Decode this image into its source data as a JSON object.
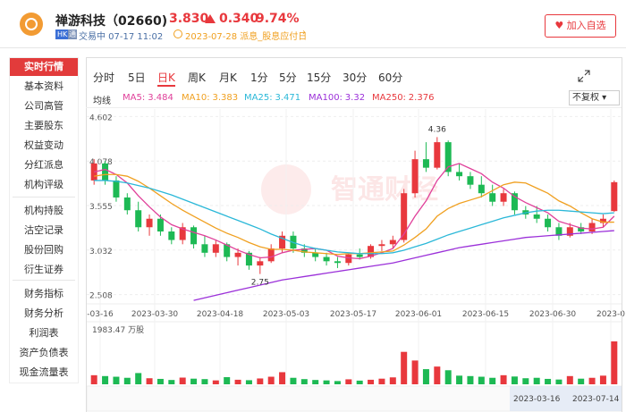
{
  "header": {
    "name": "禅游科技（02660)",
    "price": "3.830",
    "change": "0.340",
    "change_pct": "9.74%",
    "market": "HK",
    "connect": "通",
    "status": "交易中 07-17 11:02",
    "event": "2023-07-28 派息_股息应付日",
    "watch_button": "加入自选"
  },
  "nav": {
    "items": [
      "实时行情",
      "基本资料",
      "公司高管",
      "主要股东",
      "权益变动",
      "分红派息",
      "机构评级",
      "机构持股",
      "沽空记录",
      "股份回购",
      "衍生证券",
      "财务指标",
      "财务分析",
      "利润表",
      "资产负债表",
      "现金流量表"
    ]
  },
  "tabs": [
    "分时",
    "5日",
    "日K",
    "周K",
    "月K",
    "1分",
    "5分",
    "15分",
    "30分",
    "60分"
  ],
  "ma_title": "均线",
  "adjust": "不复权",
  "watermark": "智通财经",
  "chart_data": {
    "type": "candlestick",
    "ylim": [
      2.42,
      4.69
    ],
    "yticks": [
      4.602,
      4.078,
      3.555,
      3.032,
      2.508
    ],
    "grid": true,
    "up_color": "#e8383d",
    "down_color": "#1db954",
    "x_labels": [
      "-03-16",
      "2023-03-30",
      "2023-04-18",
      "2023-05-03",
      "2023-05-17",
      "2023-06-01",
      "2023-06-15",
      "2023-06-30",
      "2023-0"
    ],
    "high_mark": 4.36,
    "low_mark": 2.75,
    "ohlc": [
      [
        3.85,
        4.1,
        3.8,
        4.05
      ],
      [
        4.05,
        4.08,
        3.8,
        3.85
      ],
      [
        3.85,
        3.9,
        3.6,
        3.65
      ],
      [
        3.65,
        3.7,
        3.45,
        3.5
      ],
      [
        3.5,
        3.6,
        3.25,
        3.3
      ],
      [
        3.3,
        3.45,
        3.2,
        3.4
      ],
      [
        3.4,
        3.45,
        3.2,
        3.25
      ],
      [
        3.25,
        3.3,
        3.1,
        3.15
      ],
      [
        3.15,
        3.35,
        3.1,
        3.3
      ],
      [
        3.3,
        3.32,
        3.05,
        3.1
      ],
      [
        3.1,
        3.2,
        2.95,
        3
      ],
      [
        3,
        3.15,
        2.95,
        3.1
      ],
      [
        3.1,
        3.12,
        2.9,
        2.95
      ],
      [
        2.95,
        3.05,
        2.85,
        3
      ],
      [
        3,
        3.02,
        2.8,
        2.85
      ],
      [
        2.85,
        2.95,
        2.75,
        2.9
      ],
      [
        2.9,
        3.1,
        2.88,
        3.05
      ],
      [
        3.05,
        3.25,
        3,
        3.2
      ],
      [
        3.2,
        3.25,
        3,
        3.05
      ],
      [
        3.05,
        3.1,
        2.95,
        3
      ],
      [
        3,
        3.05,
        2.9,
        2.95
      ],
      [
        2.95,
        3,
        2.85,
        2.9
      ],
      [
        2.9,
        2.95,
        2.82,
        2.88
      ],
      [
        2.88,
        3,
        2.85,
        2.98
      ],
      [
        2.98,
        3.05,
        2.92,
        2.95
      ],
      [
        2.95,
        3.1,
        2.93,
        3.08
      ],
      [
        3.08,
        3.15,
        3.02,
        3.1
      ],
      [
        3.1,
        3.2,
        3.05,
        3.15
      ],
      [
        3.15,
        3.75,
        3.12,
        3.7
      ],
      [
        3.7,
        4.2,
        3.65,
        4.1
      ],
      [
        4.1,
        4.3,
        3.95,
        4
      ],
      [
        4,
        4.36,
        3.98,
        4.3
      ],
      [
        4.3,
        4.32,
        3.9,
        3.95
      ],
      [
        3.95,
        4.05,
        3.85,
        3.9
      ],
      [
        3.9,
        3.95,
        3.75,
        3.8
      ],
      [
        3.8,
        3.9,
        3.65,
        3.7
      ],
      [
        3.7,
        3.8,
        3.55,
        3.6
      ],
      [
        3.6,
        3.75,
        3.55,
        3.7
      ],
      [
        3.7,
        3.72,
        3.45,
        3.5
      ],
      [
        3.5,
        3.55,
        3.4,
        3.45
      ],
      [
        3.45,
        3.55,
        3.35,
        3.4
      ],
      [
        3.4,
        3.45,
        3.25,
        3.3
      ],
      [
        3.3,
        3.35,
        3.15,
        3.2
      ],
      [
        3.2,
        3.35,
        3.18,
        3.3
      ],
      [
        3.3,
        3.35,
        3.22,
        3.25
      ],
      [
        3.25,
        3.4,
        3.22,
        3.35
      ],
      [
        3.35,
        3.45,
        3.3,
        3.4
      ],
      [
        3.49,
        3.85,
        3.48,
        3.83
      ]
    ],
    "volume_max": {
      "value": 1983.47,
      "label": "1983.47 万股"
    },
    "volumes": [
      420,
      380,
      350,
      300,
      520,
      280,
      250,
      200,
      310,
      260,
      240,
      180,
      330,
      210,
      190,
      270,
      350,
      560,
      300,
      240,
      200,
      180,
      150,
      230,
      170,
      210,
      260,
      320,
      1500,
      1100,
      700,
      820,
      650,
      400,
      380,
      350,
      300,
      420,
      360,
      280,
      300,
      250,
      220,
      380,
      260,
      300,
      400,
      1983.47
    ],
    "ma": [
      {
        "name": "MA5:",
        "value": 3.484,
        "color": "#e0409a",
        "values": [
          3.95,
          3.98,
          3.92,
          3.82,
          3.67,
          3.54,
          3.42,
          3.33,
          3.28,
          3.24,
          3.2,
          3.15,
          3.09,
          3.03,
          2.98,
          2.94,
          2.95,
          3,
          3.03,
          3.04,
          3.05,
          3.03,
          2.96,
          2.94,
          2.93,
          2.96,
          3,
          3.05,
          3.22,
          3.43,
          3.61,
          3.85,
          4.01,
          4.05,
          3.99,
          3.93,
          3.83,
          3.76,
          3.66,
          3.59,
          3.53,
          3.47,
          3.37,
          3.33,
          3.29,
          3.28,
          3.3,
          3.43
        ]
      },
      {
        "name": "MA10:",
        "value": 3.383,
        "color": "#f0a020",
        "values": [
          3.9,
          3.92,
          3.92,
          3.9,
          3.84,
          3.76,
          3.67,
          3.58,
          3.5,
          3.43,
          3.36,
          3.29,
          3.23,
          3.18,
          3.12,
          3.07,
          3.04,
          3.04,
          3.03,
          3.01,
          3,
          2.99,
          2.98,
          2.99,
          2.99,
          3,
          3.01,
          3.02,
          3.09,
          3.18,
          3.28,
          3.43,
          3.52,
          3.58,
          3.62,
          3.66,
          3.73,
          3.8,
          3.83,
          3.82,
          3.76,
          3.7,
          3.61,
          3.55,
          3.47,
          3.4,
          3.36,
          3.36
        ]
      },
      {
        "name": "MA25:",
        "value": 3.471,
        "color": "#2bb8d8",
        "values": [
          3.85,
          3.85,
          3.84,
          3.82,
          3.79,
          3.76,
          3.72,
          3.68,
          3.63,
          3.58,
          3.53,
          3.48,
          3.43,
          3.38,
          3.33,
          3.28,
          3.22,
          3.17,
          3.12,
          3.08,
          3.05,
          3.03,
          3.01,
          3,
          2.99,
          2.99,
          2.99,
          3,
          3.03,
          3.07,
          3.11,
          3.16,
          3.21,
          3.25,
          3.29,
          3.33,
          3.37,
          3.41,
          3.44,
          3.47,
          3.49,
          3.5,
          3.5,
          3.49,
          3.48,
          3.47,
          3.46,
          3.47
        ]
      },
      {
        "name": "MA100:",
        "value": 3.32,
        "color": "#9b30d9",
        "values": [
          null,
          null,
          null,
          null,
          null,
          null,
          null,
          null,
          null,
          2.44,
          2.47,
          2.5,
          2.53,
          2.56,
          2.59,
          2.62,
          2.65,
          2.68,
          2.7,
          2.72,
          2.74,
          2.76,
          2.78,
          2.8,
          2.82,
          2.84,
          2.86,
          2.88,
          2.91,
          2.94,
          2.97,
          3,
          3.03,
          3.06,
          3.08,
          3.1,
          3.12,
          3.14,
          3.16,
          3.18,
          3.19,
          3.2,
          3.21,
          3.22,
          3.23,
          3.24,
          3.25,
          3.26
        ]
      },
      {
        "name": "MA250:",
        "value": 2.376,
        "color": "#e8383d"
      }
    ]
  },
  "range": {
    "start": "2023-03-16",
    "end": "2023-07-14"
  }
}
